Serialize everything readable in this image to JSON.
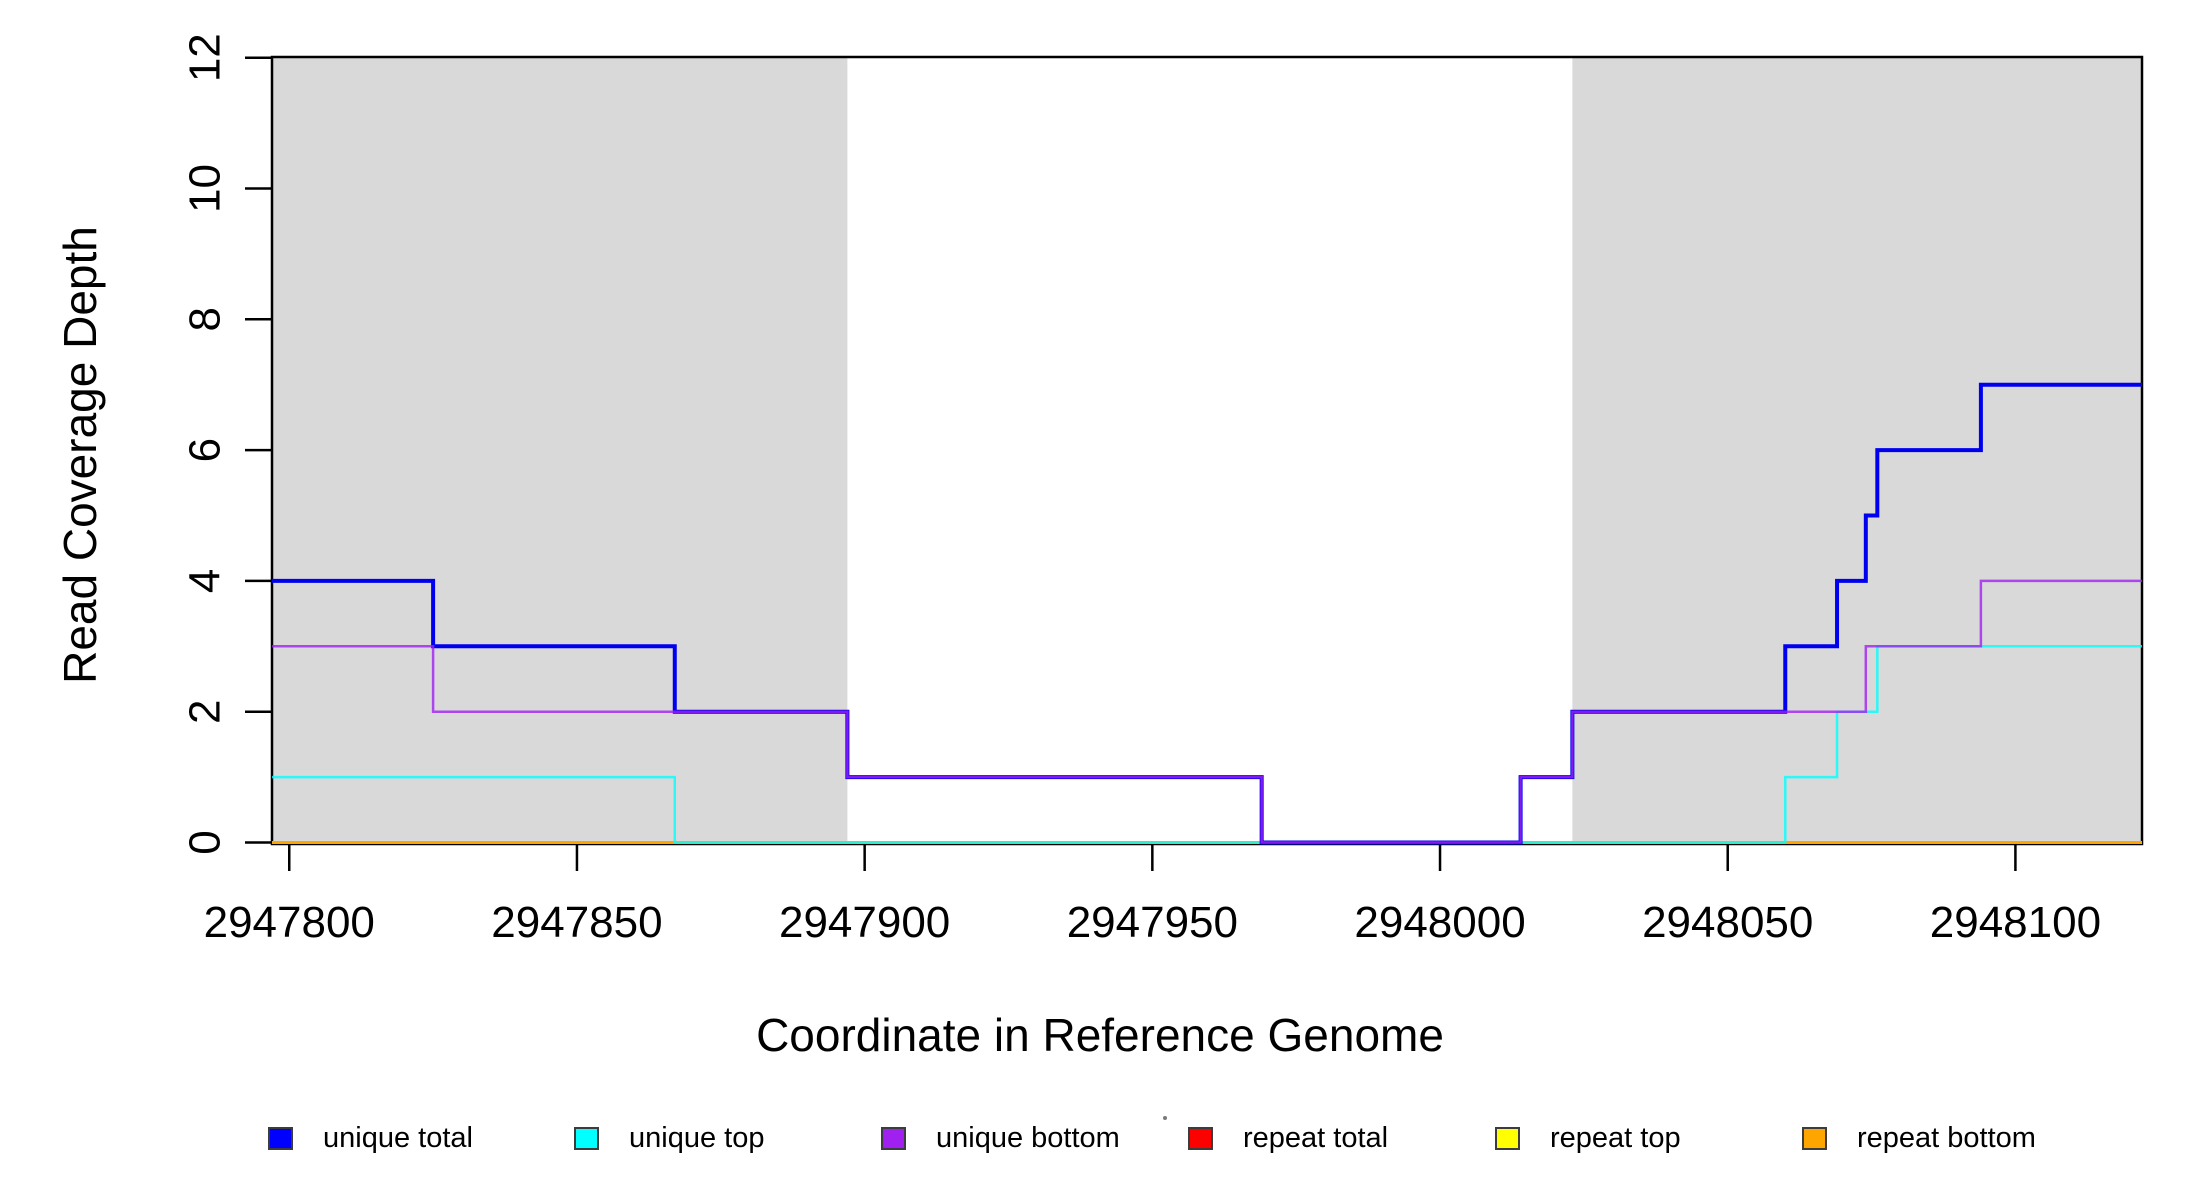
{
  "figure": {
    "xlabel": "Coordinate in Reference Genome",
    "ylabel": "Read Coverage Depth",
    "background_color": "#ffffff",
    "frame_color": "#000000"
  },
  "chart_data": {
    "type": "line",
    "subtype": "step",
    "title": "",
    "xlabel": "Coordinate in Reference Genome",
    "ylabel": "Read Coverage Depth",
    "xlim": [
      2947797,
      2948122
    ],
    "ylim": [
      0,
      12
    ],
    "xticks": [
      2947800,
      2947850,
      2947900,
      2947950,
      2948000,
      2948050,
      2948100
    ],
    "yticks": [
      0,
      2,
      4,
      6,
      8,
      10,
      12
    ],
    "grid": false,
    "legend_position": "bottom",
    "shaded_regions": [
      {
        "x0": 2947797,
        "x1": 2947897,
        "color": "#d9d9d9"
      },
      {
        "x0": 2948023,
        "x1": 2948122,
        "color": "#d9d9d9"
      }
    ],
    "series": [
      {
        "name": "repeat total",
        "color": "#ff0000",
        "width": 3,
        "opacity": 1,
        "steps": [
          [
            2947797,
            0
          ]
        ],
        "x_end": 2948122
      },
      {
        "name": "repeat top",
        "color": "#ffff00",
        "width": 3,
        "opacity": 1,
        "steps": [
          [
            2947797,
            0
          ]
        ],
        "x_end": 2948122
      },
      {
        "name": "repeat bottom",
        "color": "#ffa500",
        "width": 3,
        "opacity": 1,
        "steps": [
          [
            2947797,
            0
          ]
        ],
        "x_end": 2948122
      },
      {
        "name": "unique top",
        "color": "#00ffff",
        "width": 2.5,
        "opacity": 0.8,
        "steps": [
          [
            2947797,
            1
          ],
          [
            2947867,
            0
          ],
          [
            2948060,
            1
          ],
          [
            2948069,
            2
          ],
          [
            2948076,
            3
          ]
        ],
        "x_end": 2948122
      },
      {
        "name": "unique total",
        "color": "#0000ee",
        "width": 4,
        "opacity": 1,
        "steps": [
          [
            2947797,
            4
          ],
          [
            2947825,
            3
          ],
          [
            2947867,
            2
          ],
          [
            2947897,
            1
          ],
          [
            2947969,
            0
          ],
          [
            2948014,
            1
          ],
          [
            2948023,
            2
          ],
          [
            2948060,
            3
          ],
          [
            2948069,
            4
          ],
          [
            2948074,
            5
          ],
          [
            2948076,
            6
          ],
          [
            2948094,
            7
          ]
        ],
        "x_end": 2948122
      },
      {
        "name": "unique bottom",
        "color": "#a020f0",
        "width": 2.5,
        "opacity": 0.8,
        "steps": [
          [
            2947797,
            3
          ],
          [
            2947825,
            2
          ],
          [
            2947897,
            1
          ],
          [
            2947969,
            0
          ],
          [
            2948014,
            1
          ],
          [
            2948023,
            2
          ],
          [
            2948074,
            3
          ],
          [
            2948094,
            4
          ]
        ],
        "x_end": 2948122
      }
    ],
    "legend": [
      {
        "label": "unique total",
        "color": "#0000ff"
      },
      {
        "label": "unique top",
        "color": "#00ffff"
      },
      {
        "label": "unique bottom",
        "color": "#a020f0"
      },
      {
        "label": "repeat total",
        "color": "#ff0000"
      },
      {
        "label": "repeat top",
        "color": "#ffff00"
      },
      {
        "label": "repeat bottom",
        "color": "#ffa500"
      }
    ]
  }
}
